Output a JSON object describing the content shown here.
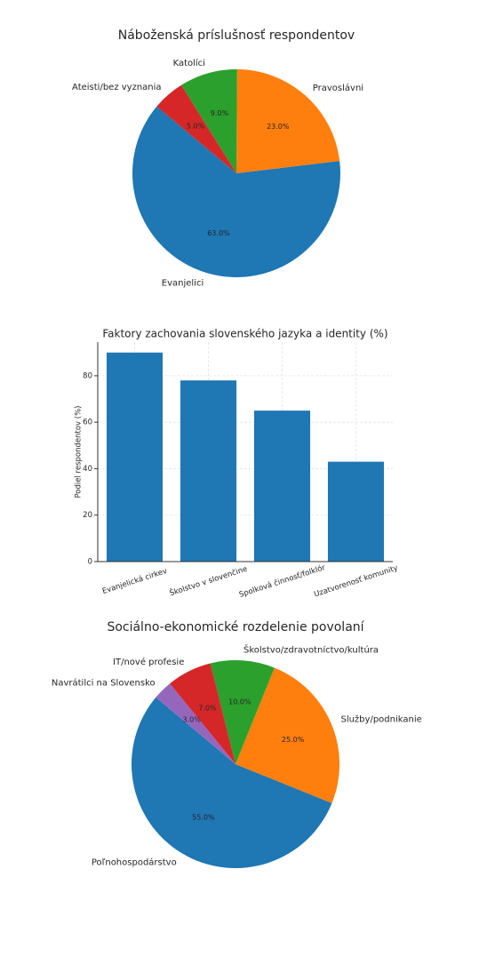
{
  "chart_data": [
    {
      "type": "pie",
      "title": "Náboženská príslušnosť respondentov",
      "categories": [
        "Evanjelici",
        "Pravoslávni",
        "Katolíci",
        "Ateisti/bez vyznania"
      ],
      "values": [
        63,
        23,
        9,
        5
      ],
      "value_labels": [
        "63.0%",
        "23.0%",
        "9.0%",
        "5.0%"
      ],
      "colors": [
        "#1f77b4",
        "#ff7f0e",
        "#2ca02c",
        "#d62728"
      ],
      "startangle": 140
    },
    {
      "type": "bar",
      "title": "Faktory zachovania slovenského jazyka a identity (%)",
      "ylabel": "Podiel respondentov (%)",
      "categories": [
        "Evanjelická cirkev",
        "Školstvo v slovenčine",
        "Spolková činnosť/folklór",
        "Uzatvorenosť komunity"
      ],
      "values": [
        90,
        78,
        65,
        43
      ],
      "color": "#1f77b4",
      "ylim": [
        0,
        94.5
      ],
      "yticks": [
        0,
        20,
        40,
        60,
        80
      ],
      "grid": true
    },
    {
      "type": "pie",
      "title": "Sociálno-ekonomické rozdelenie povolaní",
      "categories": [
        "Poľnohospodárstvo",
        "Služby/podnikanie",
        "Školstvo/zdravotníctvo/kultúra",
        "IT/nové profesie",
        "Navrátilci na Slovensko"
      ],
      "values": [
        55,
        25,
        10,
        7,
        3
      ],
      "value_labels": [
        "55.0%",
        "25.0%",
        "10.0%",
        "7.0%",
        "3.0%"
      ],
      "colors": [
        "#1f77b4",
        "#ff7f0e",
        "#2ca02c",
        "#d62728",
        "#9467bd"
      ],
      "startangle": 140
    }
  ]
}
